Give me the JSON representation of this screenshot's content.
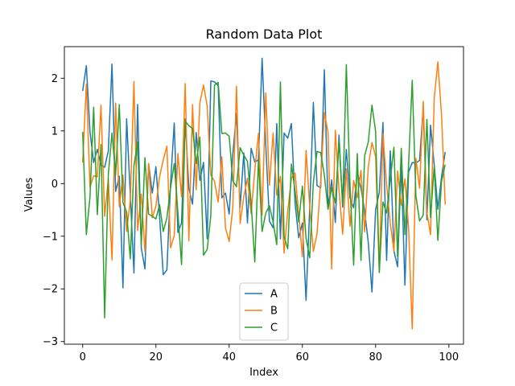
{
  "chart_data": {
    "type": "line",
    "title": "Random Data Plot",
    "xlabel": "Index",
    "ylabel": "Values",
    "xlim": [
      -5,
      104
    ],
    "ylim": [
      -3.05,
      2.6
    ],
    "xticks": [
      0,
      20,
      40,
      60,
      80,
      100
    ],
    "yticks": [
      -3,
      -2,
      -1,
      0,
      1,
      2
    ],
    "grid": false,
    "legend_position": "bottom-center",
    "x": [
      0,
      1,
      2,
      3,
      4,
      5,
      6,
      7,
      8,
      9,
      10,
      11,
      12,
      13,
      14,
      15,
      16,
      17,
      18,
      19,
      20,
      21,
      22,
      23,
      24,
      25,
      26,
      27,
      28,
      29,
      30,
      31,
      32,
      33,
      34,
      35,
      36,
      37,
      38,
      39,
      40,
      41,
      42,
      43,
      44,
      45,
      46,
      47,
      48,
      49,
      50,
      51,
      52,
      53,
      54,
      55,
      56,
      57,
      58,
      59,
      60,
      61,
      62,
      63,
      64,
      65,
      66,
      67,
      68,
      69,
      70,
      71,
      72,
      73,
      74,
      75,
      76,
      77,
      78,
      79,
      80,
      81,
      82,
      83,
      84,
      85,
      86,
      87,
      88,
      89,
      90,
      91,
      92,
      93,
      94,
      95,
      96,
      97,
      98,
      99
    ],
    "series": [
      {
        "name": "A",
        "color": "#1f77b4",
        "values": [
          1.76,
          2.24,
          0.98,
          0.4,
          0.65,
          0.35,
          0.31,
          0.62,
          2.27,
          -0.15,
          0.14,
          -1.98,
          1.23,
          -0.21,
          -1.7,
          1.5,
          -1.22,
          -1.62,
          0.38,
          -0.18,
          0.32,
          -0.62,
          -1.73,
          -1.64,
          0.0,
          1.15,
          -0.93,
          -0.75,
          1.23,
          -0.1,
          -0.39,
          0.97,
          0.06,
          0.4,
          -1.05,
          1.95,
          1.93,
          1.86,
          -0.27,
          -0.18,
          -0.58,
          0.56,
          1.33,
          -0.45,
          0.58,
          -0.75,
          0.67,
          0.41,
          0.45,
          2.38,
          0.73,
          -0.71,
          -0.84,
          1.14,
          -1.05,
          0.96,
          0.86,
          1.14,
          -0.37,
          -1.03,
          -0.75,
          -2.22,
          -0.47,
          1.54,
          -0.04,
          -0.08,
          2.16,
          -0.45,
          0.07,
          -0.74,
          0.92,
          -0.45,
          0.65,
          -0.27,
          -0.46,
          0.22,
          -0.09,
          -0.52,
          -1.12,
          -2.06,
          -0.49,
          -0.17,
          1.16,
          -1.46,
          0.62,
          -1.28,
          -1.58,
          0.38,
          -1.93,
          0.22,
          0.4,
          0.39,
          0.44,
          1.43,
          -0.69,
          1.11,
          0.36,
          -0.49,
          0.13,
          0.6
        ]
      },
      {
        "name": "B",
        "color": "#ff7f0e",
        "values": [
          0.4,
          1.89,
          -0.07,
          0.15,
          0.13,
          1.49,
          -0.62,
          0.09,
          -1.45,
          1.53,
          -0.44,
          0.16,
          -0.91,
          -0.32,
          1.94,
          -0.89,
          -0.2,
          -1.29,
          0.38,
          -0.65,
          -0.43,
          0.13,
          0.45,
          0.71,
          -1.22,
          -0.99,
          0.57,
          -0.25,
          1.9,
          -1.09,
          1.5,
          -0.12,
          1.53,
          1.87,
          1.47,
          0.16,
          0.04,
          -0.35,
          0.51,
          -0.84,
          -1.1,
          -0.46,
          1.85,
          -0.76,
          -0.25,
          0.1,
          -0.57,
          0.25,
          0.95,
          -0.6,
          1.72,
          -0.03,
          0.96,
          -0.22,
          0.14,
          -1.32,
          -0.52,
          0.1,
          0.2,
          -0.58,
          -1.39,
          0.63,
          -0.43,
          -1.29,
          -0.95,
          0.04,
          1.35,
          0.98,
          -1.62,
          1.01,
          -0.11,
          -0.96,
          0.28,
          -0.81,
          0.06,
          -0.27,
          0.25,
          -0.92,
          0.32,
          0.78,
          0.51,
          -1.66,
          0.95,
          -0.02,
          -0.76,
          -1.28,
          0.24,
          -0.41,
          0.09,
          -0.83,
          -2.76,
          0.48,
          -0.09,
          1.56,
          -0.55,
          -0.97,
          1.62,
          2.31,
          1.3,
          -0.4
        ]
      },
      {
        "name": "C",
        "color": "#2ca02c",
        "values": [
          0.98,
          -0.97,
          -0.25,
          1.45,
          -0.59,
          0.74,
          -2.55,
          0.17,
          0.96,
          0.17,
          1.5,
          -0.36,
          -0.54,
          -1.43,
          0.34,
          0.79,
          -1.17,
          0.49,
          -0.58,
          -0.62,
          -0.67,
          -0.4,
          -0.91,
          -0.65,
          -0.08,
          0.38,
          -0.54,
          -1.54,
          1.18,
          1.1,
          1.05,
          0.38,
          0.88,
          -1.36,
          -1.25,
          -0.6,
          1.87,
          1.92,
          0.95,
          0.96,
          0.9,
          0.05,
          -0.06,
          0.68,
          0.54,
          0.42,
          -0.36,
          -1.49,
          0.44,
          -0.91,
          -0.56,
          -0.42,
          -0.73,
          -1.16,
          1.93,
          -1.01,
          -1.24,
          0.37,
          -0.14,
          -0.73,
          -0.05,
          -1.04,
          -1.41,
          0.02,
          0.61,
          0.59,
          0.16,
          -0.49,
          -0.08,
          -0.37,
          0.81,
          -0.39,
          2.26,
          -0.03,
          -1.55,
          0.57,
          -1.46,
          0.53,
          0.79,
          1.49,
          0.99,
          -1.69,
          -0.35,
          -0.56,
          0.08,
          0.69,
          -1.39,
          0.67,
          -0.97,
          0.35,
          1.96,
          -0.23,
          -0.71,
          -0.6,
          1.22,
          -0.65,
          0.33,
          -1.08,
          0.04,
          0.36
        ]
      }
    ]
  }
}
